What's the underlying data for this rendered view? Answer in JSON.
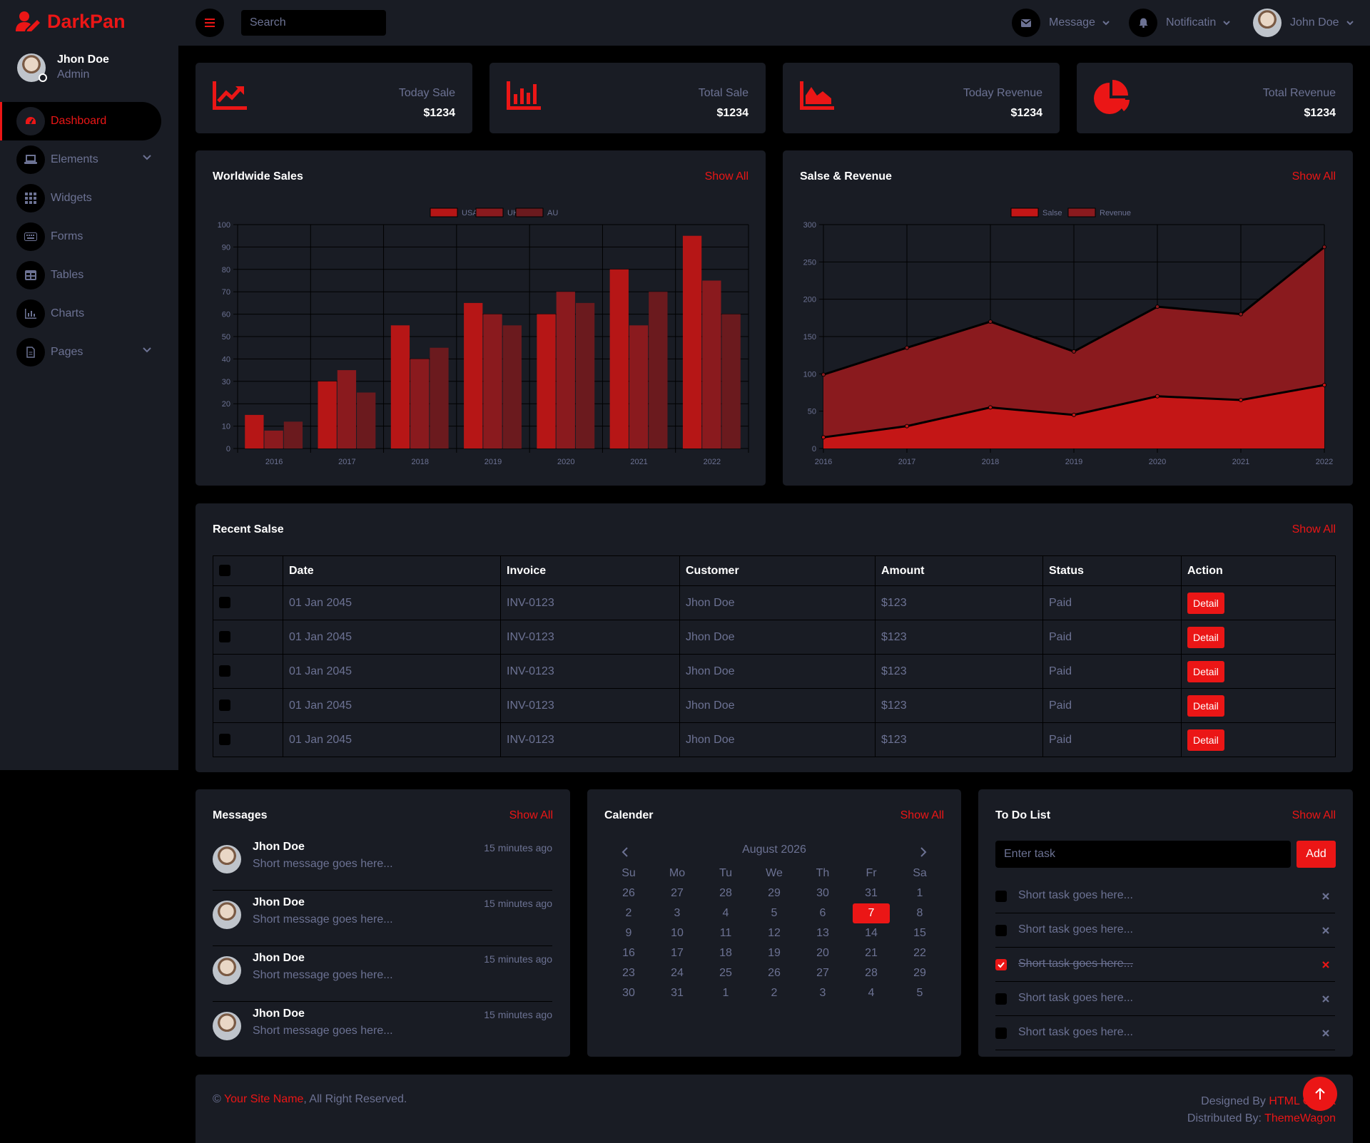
{
  "brand": {
    "name": "DarkPan",
    "accent": "#EB1616"
  },
  "sidebar": {
    "user": {
      "name": "Jhon Doe",
      "role": "Admin"
    },
    "items": [
      {
        "label": "Dashboard",
        "icon": "tachometer-icon",
        "active": true
      },
      {
        "label": "Elements",
        "icon": "laptop-icon",
        "dropdown": true
      },
      {
        "label": "Widgets",
        "icon": "th-grid-icon"
      },
      {
        "label": "Forms",
        "icon": "keyboard-icon"
      },
      {
        "label": "Tables",
        "icon": "table-icon"
      },
      {
        "label": "Charts",
        "icon": "chart-bar-icon"
      },
      {
        "label": "Pages",
        "icon": "file-icon",
        "dropdown": true
      }
    ]
  },
  "topbar": {
    "search_placeholder": "Search",
    "message_label": "Message",
    "notification_label": "Notificatin",
    "user_name": "John Doe"
  },
  "stats": [
    {
      "label": "Today Sale",
      "value": "$1234",
      "icon": "chart-line-icon"
    },
    {
      "label": "Total Sale",
      "value": "$1234",
      "icon": "chart-bar-icon"
    },
    {
      "label": "Today Revenue",
      "value": "$1234",
      "icon": "chart-area-icon"
    },
    {
      "label": "Total Revenue",
      "value": "$1234",
      "icon": "chart-pie-icon"
    }
  ],
  "worldwide": {
    "title": "Worldwide Sales",
    "show_all": "Show All"
  },
  "salse_revenue": {
    "title": "Salse & Revenue",
    "show_all": "Show All"
  },
  "chart_data": [
    {
      "type": "bar",
      "categories": [
        "2016",
        "2017",
        "2018",
        "2019",
        "2020",
        "2021",
        "2022"
      ],
      "series": [
        {
          "name": "USA",
          "values": [
            15,
            30,
            55,
            65,
            60,
            80,
            95
          ],
          "color": "#B61616"
        },
        {
          "name": "UK",
          "values": [
            8,
            35,
            40,
            60,
            70,
            55,
            75
          ],
          "color": "#8A1A1E"
        },
        {
          "name": "AU",
          "values": [
            12,
            25,
            45,
            55,
            65,
            70,
            60
          ],
          "color": "#6B1A1E"
        }
      ],
      "ylim": [
        0,
        100
      ],
      "yticks": [
        0,
        10,
        20,
        30,
        40,
        50,
        60,
        70,
        80,
        90,
        100
      ],
      "legend": "top-center",
      "grid": true
    },
    {
      "type": "area",
      "categories": [
        "2016",
        "2017",
        "2018",
        "2019",
        "2020",
        "2021",
        "2022"
      ],
      "series": [
        {
          "name": "Salse",
          "values": [
            15,
            30,
            55,
            45,
            70,
            65,
            85
          ],
          "color": "#C41616"
        },
        {
          "name": "Revenue",
          "values": [
            99,
            135,
            170,
            130,
            190,
            180,
            270
          ],
          "color": "#8A1A1E"
        }
      ],
      "ylim": [
        0,
        300
      ],
      "yticks": [
        0,
        50,
        100,
        150,
        200,
        250,
        300
      ],
      "legend": "top-center",
      "grid": true
    }
  ],
  "recent": {
    "title": "Recent Salse",
    "show_all": "Show All",
    "columns": [
      "Date",
      "Invoice",
      "Customer",
      "Amount",
      "Status",
      "Action"
    ],
    "rows": [
      {
        "date": "01 Jan 2045",
        "invoice": "INV-0123",
        "customer": "Jhon Doe",
        "amount": "$123",
        "status": "Paid",
        "action": "Detail"
      },
      {
        "date": "01 Jan 2045",
        "invoice": "INV-0123",
        "customer": "Jhon Doe",
        "amount": "$123",
        "status": "Paid",
        "action": "Detail"
      },
      {
        "date": "01 Jan 2045",
        "invoice": "INV-0123",
        "customer": "Jhon Doe",
        "amount": "$123",
        "status": "Paid",
        "action": "Detail"
      },
      {
        "date": "01 Jan 2045",
        "invoice": "INV-0123",
        "customer": "Jhon Doe",
        "amount": "$123",
        "status": "Paid",
        "action": "Detail"
      },
      {
        "date": "01 Jan 2045",
        "invoice": "INV-0123",
        "customer": "Jhon Doe",
        "amount": "$123",
        "status": "Paid",
        "action": "Detail"
      }
    ]
  },
  "messages": {
    "title": "Messages",
    "show_all": "Show All",
    "items": [
      {
        "name": "Jhon Doe",
        "time": "15 minutes ago",
        "text": "Short message goes here..."
      },
      {
        "name": "Jhon Doe",
        "time": "15 minutes ago",
        "text": "Short message goes here..."
      },
      {
        "name": "Jhon Doe",
        "time": "15 minutes ago",
        "text": "Short message goes here..."
      },
      {
        "name": "Jhon Doe",
        "time": "15 minutes ago",
        "text": "Short message goes here..."
      }
    ]
  },
  "calendar": {
    "title": "Calender",
    "show_all": "Show All",
    "month": "August 2026",
    "weekdays": [
      "Su",
      "Mo",
      "Tu",
      "We",
      "Th",
      "Fr",
      "Sa"
    ],
    "weeks": [
      [
        "26",
        "27",
        "28",
        "29",
        "30",
        "31",
        "1"
      ],
      [
        "2",
        "3",
        "4",
        "5",
        "6",
        "7",
        "8"
      ],
      [
        "9",
        "10",
        "11",
        "12",
        "13",
        "14",
        "15"
      ],
      [
        "16",
        "17",
        "18",
        "19",
        "20",
        "21",
        "22"
      ],
      [
        "23",
        "24",
        "25",
        "26",
        "27",
        "28",
        "29"
      ],
      [
        "30",
        "31",
        "1",
        "2",
        "3",
        "4",
        "5"
      ]
    ],
    "today": "7"
  },
  "todo": {
    "title": "To Do List",
    "show_all": "Show All",
    "placeholder": "Enter task",
    "add_label": "Add",
    "items": [
      {
        "text": "Short task goes here...",
        "done": false
      },
      {
        "text": "Short task goes here...",
        "done": false
      },
      {
        "text": "Short task goes here...",
        "done": true
      },
      {
        "text": "Short task goes here...",
        "done": false
      },
      {
        "text": "Short task goes here...",
        "done": false
      }
    ]
  },
  "footer": {
    "copyright": "©",
    "site_name": "Your Site Name",
    "rights": ", All Right Reserved.",
    "designed_by": "Designed By",
    "designer": "HTML Codex",
    "distributed_by": "Distributed By:",
    "distributor": "ThemeWagon"
  }
}
